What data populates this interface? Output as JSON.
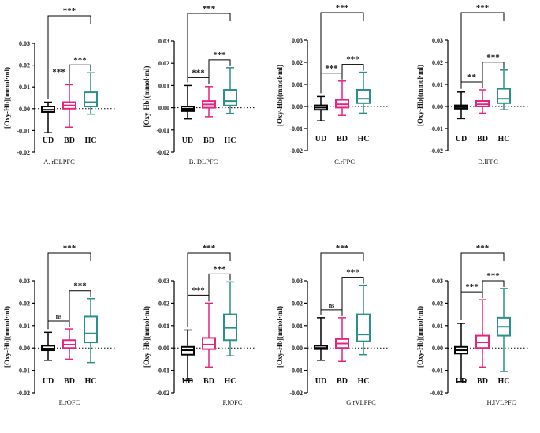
{
  "colors": {
    "UD": "#000000",
    "BD": "#e6237e",
    "HC": "#2b8f8a"
  },
  "chart_data": [
    {
      "type": "box",
      "title": "A. rDLPFC",
      "ylabel": "[Oxy-Hb](mmol·ml)",
      "ylim": [
        -0.02,
        0.03
      ],
      "yticks": [
        "0.03",
        "0.02",
        "0.01",
        "0.00",
        "-0.01",
        "-0.02"
      ],
      "categories": [
        "UD",
        "BD",
        "HC"
      ],
      "boxes": [
        {
          "min": -0.011,
          "q1": -0.0015,
          "median": -0.0005,
          "q3": 0.001,
          "max": 0.003
        },
        {
          "min": -0.0085,
          "q1": 0.0,
          "median": 0.0015,
          "q3": 0.003,
          "max": 0.011
        },
        {
          "min": -0.0025,
          "q1": 0.001,
          "median": 0.003,
          "q3": 0.0075,
          "max": 0.0165
        }
      ],
      "annotations": [
        {
          "from": 0,
          "to": 1,
          "label": "***"
        },
        {
          "from": 1,
          "to": 2,
          "label": "***"
        },
        {
          "from": 0,
          "to": 2,
          "label": "***"
        }
      ]
    },
    {
      "type": "box",
      "title": "B.lDLPFC",
      "ylabel": "[Oxy-Hb](mmol·ml)",
      "ylim": [
        -0.02,
        0.03
      ],
      "yticks": [
        "0.03",
        "0.02",
        "0.01",
        "0.00",
        "-0.01",
        "-0.02"
      ],
      "categories": [
        "UD",
        "BD",
        "HC"
      ],
      "boxes": [
        {
          "min": -0.005,
          "q1": -0.0015,
          "median": -0.0005,
          "q3": 0.0005,
          "max": 0.01
        },
        {
          "min": -0.004,
          "q1": 0.0,
          "median": 0.0015,
          "q3": 0.003,
          "max": 0.0095
        },
        {
          "min": -0.0025,
          "q1": 0.001,
          "median": 0.003,
          "q3": 0.008,
          "max": 0.018
        }
      ],
      "annotations": [
        {
          "from": 0,
          "to": 1,
          "label": "***"
        },
        {
          "from": 1,
          "to": 2,
          "label": "***"
        },
        {
          "from": 0,
          "to": 2,
          "label": "***"
        }
      ]
    },
    {
      "type": "box",
      "title": "C.rFPC",
      "ylabel": "[Oxy-Hb](mmol·ml)",
      "ylim": [
        -0.02,
        0.03
      ],
      "yticks": [
        "0.03",
        "0.02",
        "0.01",
        "0.00",
        "-0.01",
        "-0.02"
      ],
      "categories": [
        "UD",
        "BD",
        "HC"
      ],
      "boxes": [
        {
          "min": -0.0065,
          "q1": -0.0015,
          "median": -0.0005,
          "q3": 0.0005,
          "max": 0.0045
        },
        {
          "min": -0.004,
          "q1": -0.0005,
          "median": 0.001,
          "q3": 0.003,
          "max": 0.0115
        },
        {
          "min": -0.003,
          "q1": 0.0015,
          "median": 0.0035,
          "q3": 0.0075,
          "max": 0.0155
        }
      ],
      "annotations": [
        {
          "from": 0,
          "to": 1,
          "label": "***"
        },
        {
          "from": 1,
          "to": 2,
          "label": "***"
        },
        {
          "from": 0,
          "to": 2,
          "label": "***"
        }
      ]
    },
    {
      "type": "box",
      "title": "D.lFPC",
      "ylabel": "[Oxy-Hb](mmol·ml)",
      "ylim": [
        -0.02,
        0.03
      ],
      "yticks": [
        "0.03",
        "0.02",
        "0.01",
        "0.00",
        "-0.01",
        "-0.02"
      ],
      "categories": [
        "UD",
        "BD",
        "HC"
      ],
      "boxes": [
        {
          "min": -0.0055,
          "q1": -0.001,
          "median": -0.0003,
          "q3": 0.0005,
          "max": 0.0065
        },
        {
          "min": -0.003,
          "q1": 0.0,
          "median": 0.001,
          "q3": 0.0025,
          "max": 0.0075
        },
        {
          "min": -0.0015,
          "q1": 0.0015,
          "median": 0.0035,
          "q3": 0.008,
          "max": 0.0165
        }
      ],
      "annotations": [
        {
          "from": 0,
          "to": 1,
          "label": "**"
        },
        {
          "from": 1,
          "to": 2,
          "label": "***"
        },
        {
          "from": 0,
          "to": 2,
          "label": "***"
        }
      ]
    },
    {
      "type": "box",
      "title": "E.rOFC",
      "ylabel": "[Oxy-Hb](mmol·ml)",
      "ylim": [
        -0.02,
        0.03
      ],
      "yticks": [
        "0.03",
        "0.02",
        "0.01",
        "0.00",
        "-0.01",
        "-0.02"
      ],
      "categories": [
        "UD",
        "BD",
        "HC"
      ],
      "boxes": [
        {
          "min": -0.0055,
          "q1": -0.001,
          "median": -0.0003,
          "q3": 0.001,
          "max": 0.007
        },
        {
          "min": -0.005,
          "q1": 0.0,
          "median": 0.0015,
          "q3": 0.0035,
          "max": 0.0085
        },
        {
          "min": -0.0065,
          "q1": 0.0025,
          "median": 0.0065,
          "q3": 0.014,
          "max": 0.022
        }
      ],
      "annotations": [
        {
          "from": 0,
          "to": 1,
          "label": "ns"
        },
        {
          "from": 1,
          "to": 2,
          "label": "***"
        },
        {
          "from": 0,
          "to": 2,
          "label": "***"
        }
      ]
    },
    {
      "type": "box",
      "title": "F.lOFC",
      "ylabel": "[Oxy-Hb](mmol·ml)",
      "ylim": [
        -0.02,
        0.03
      ],
      "yticks": [
        "0.03",
        "0.02",
        "0.01",
        "0.00",
        "-0.01",
        "-0.02"
      ],
      "categories": [
        "UD",
        "BD",
        "HC"
      ],
      "boxes": [
        {
          "min": -0.0145,
          "q1": -0.003,
          "median": -0.001,
          "q3": 0.0005,
          "max": 0.008
        },
        {
          "min": -0.0085,
          "q1": -0.0005,
          "median": 0.0015,
          "q3": 0.0045,
          "max": 0.02
        },
        {
          "min": -0.0035,
          "q1": 0.0035,
          "median": 0.009,
          "q3": 0.015,
          "max": 0.0295
        }
      ],
      "annotations": [
        {
          "from": 0,
          "to": 1,
          "label": "***"
        },
        {
          "from": 1,
          "to": 2,
          "label": "***"
        },
        {
          "from": 0,
          "to": 2,
          "label": "***"
        }
      ]
    },
    {
      "type": "box",
      "title": "G.rVLPFC",
      "ylabel": "[Oxy-Hb](mmol·ml)",
      "ylim": [
        -0.02,
        0.03
      ],
      "yticks": [
        "0.03",
        "0.02",
        "0.01",
        "0.00",
        "-0.01",
        "-0.02"
      ],
      "categories": [
        "UD",
        "BD",
        "HC"
      ],
      "boxes": [
        {
          "min": -0.0055,
          "q1": -0.0005,
          "median": 0.0,
          "q3": 0.001,
          "max": 0.0135
        },
        {
          "min": -0.006,
          "q1": 0.0,
          "median": 0.002,
          "q3": 0.004,
          "max": 0.0135
        },
        {
          "min": -0.003,
          "q1": 0.003,
          "median": 0.006,
          "q3": 0.015,
          "max": 0.028
        }
      ],
      "annotations": [
        {
          "from": 0,
          "to": 1,
          "label": "ns"
        },
        {
          "from": 1,
          "to": 2,
          "label": "***"
        },
        {
          "from": 0,
          "to": 2,
          "label": "***"
        }
      ]
    },
    {
      "type": "box",
      "title": "H.lVLPFC",
      "ylabel": "[Oxy-Hb](mmol·ml)",
      "ylim": [
        -0.02,
        0.03
      ],
      "yticks": [
        "0.03",
        "0.02",
        "0.01",
        "0.00",
        "-0.01",
        "-0.02"
      ],
      "categories": [
        "UD",
        "BD",
        "HC"
      ],
      "boxes": [
        {
          "min": -0.015,
          "q1": -0.0025,
          "median": -0.001,
          "q3": 0.0005,
          "max": 0.011
        },
        {
          "min": -0.0085,
          "q1": 0.0,
          "median": 0.0025,
          "q3": 0.0055,
          "max": 0.0215
        },
        {
          "min": -0.0105,
          "q1": 0.0055,
          "median": 0.0095,
          "q3": 0.0135,
          "max": 0.0265
        }
      ],
      "annotations": [
        {
          "from": 0,
          "to": 1,
          "label": "***"
        },
        {
          "from": 1,
          "to": 2,
          "label": "***"
        },
        {
          "from": 0,
          "to": 2,
          "label": "***"
        }
      ]
    }
  ]
}
